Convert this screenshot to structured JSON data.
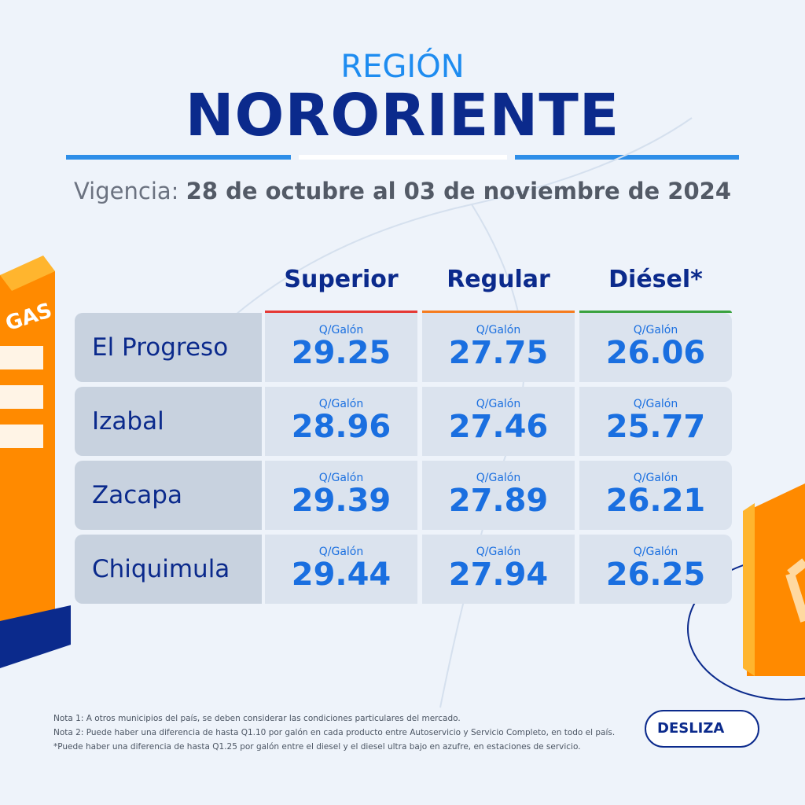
{
  "header": {
    "region_label": "REGIÓN",
    "region": "NORORIENTE",
    "validity_label": "Vigencia:",
    "validity": "28 de octubre al 03 de noviembre de 2024"
  },
  "table": {
    "columns": [
      "Superior",
      "Regular",
      "Diésel*"
    ],
    "unit": "Q/Galón",
    "rows": [
      {
        "name": "El Progreso",
        "values": [
          29.25,
          27.75,
          26.06
        ]
      },
      {
        "name": "Izabal",
        "values": [
          28.96,
          27.46,
          25.77
        ]
      },
      {
        "name": "Zacapa",
        "values": [
          29.39,
          27.89,
          26.21
        ]
      },
      {
        "name": "Chiquimula",
        "values": [
          29.44,
          27.94,
          26.25
        ]
      }
    ]
  },
  "pump_label": "GAS",
  "notes": [
    "Nota 1: A otros municipios del país, se deben considerar las condiciones particulares del mercado.",
    "Nota 2: Puede haber una diferencia de hasta Q1.10 por galón en cada producto entre Autoservicio y Servicio Completo, en todo el país.",
    "*Puede haber una diferencia de hasta Q1.25 por galón entre el diesel y el diesel ultra bajo en azufre, en estaciones de servicio."
  ],
  "button": "DESLIZA"
}
